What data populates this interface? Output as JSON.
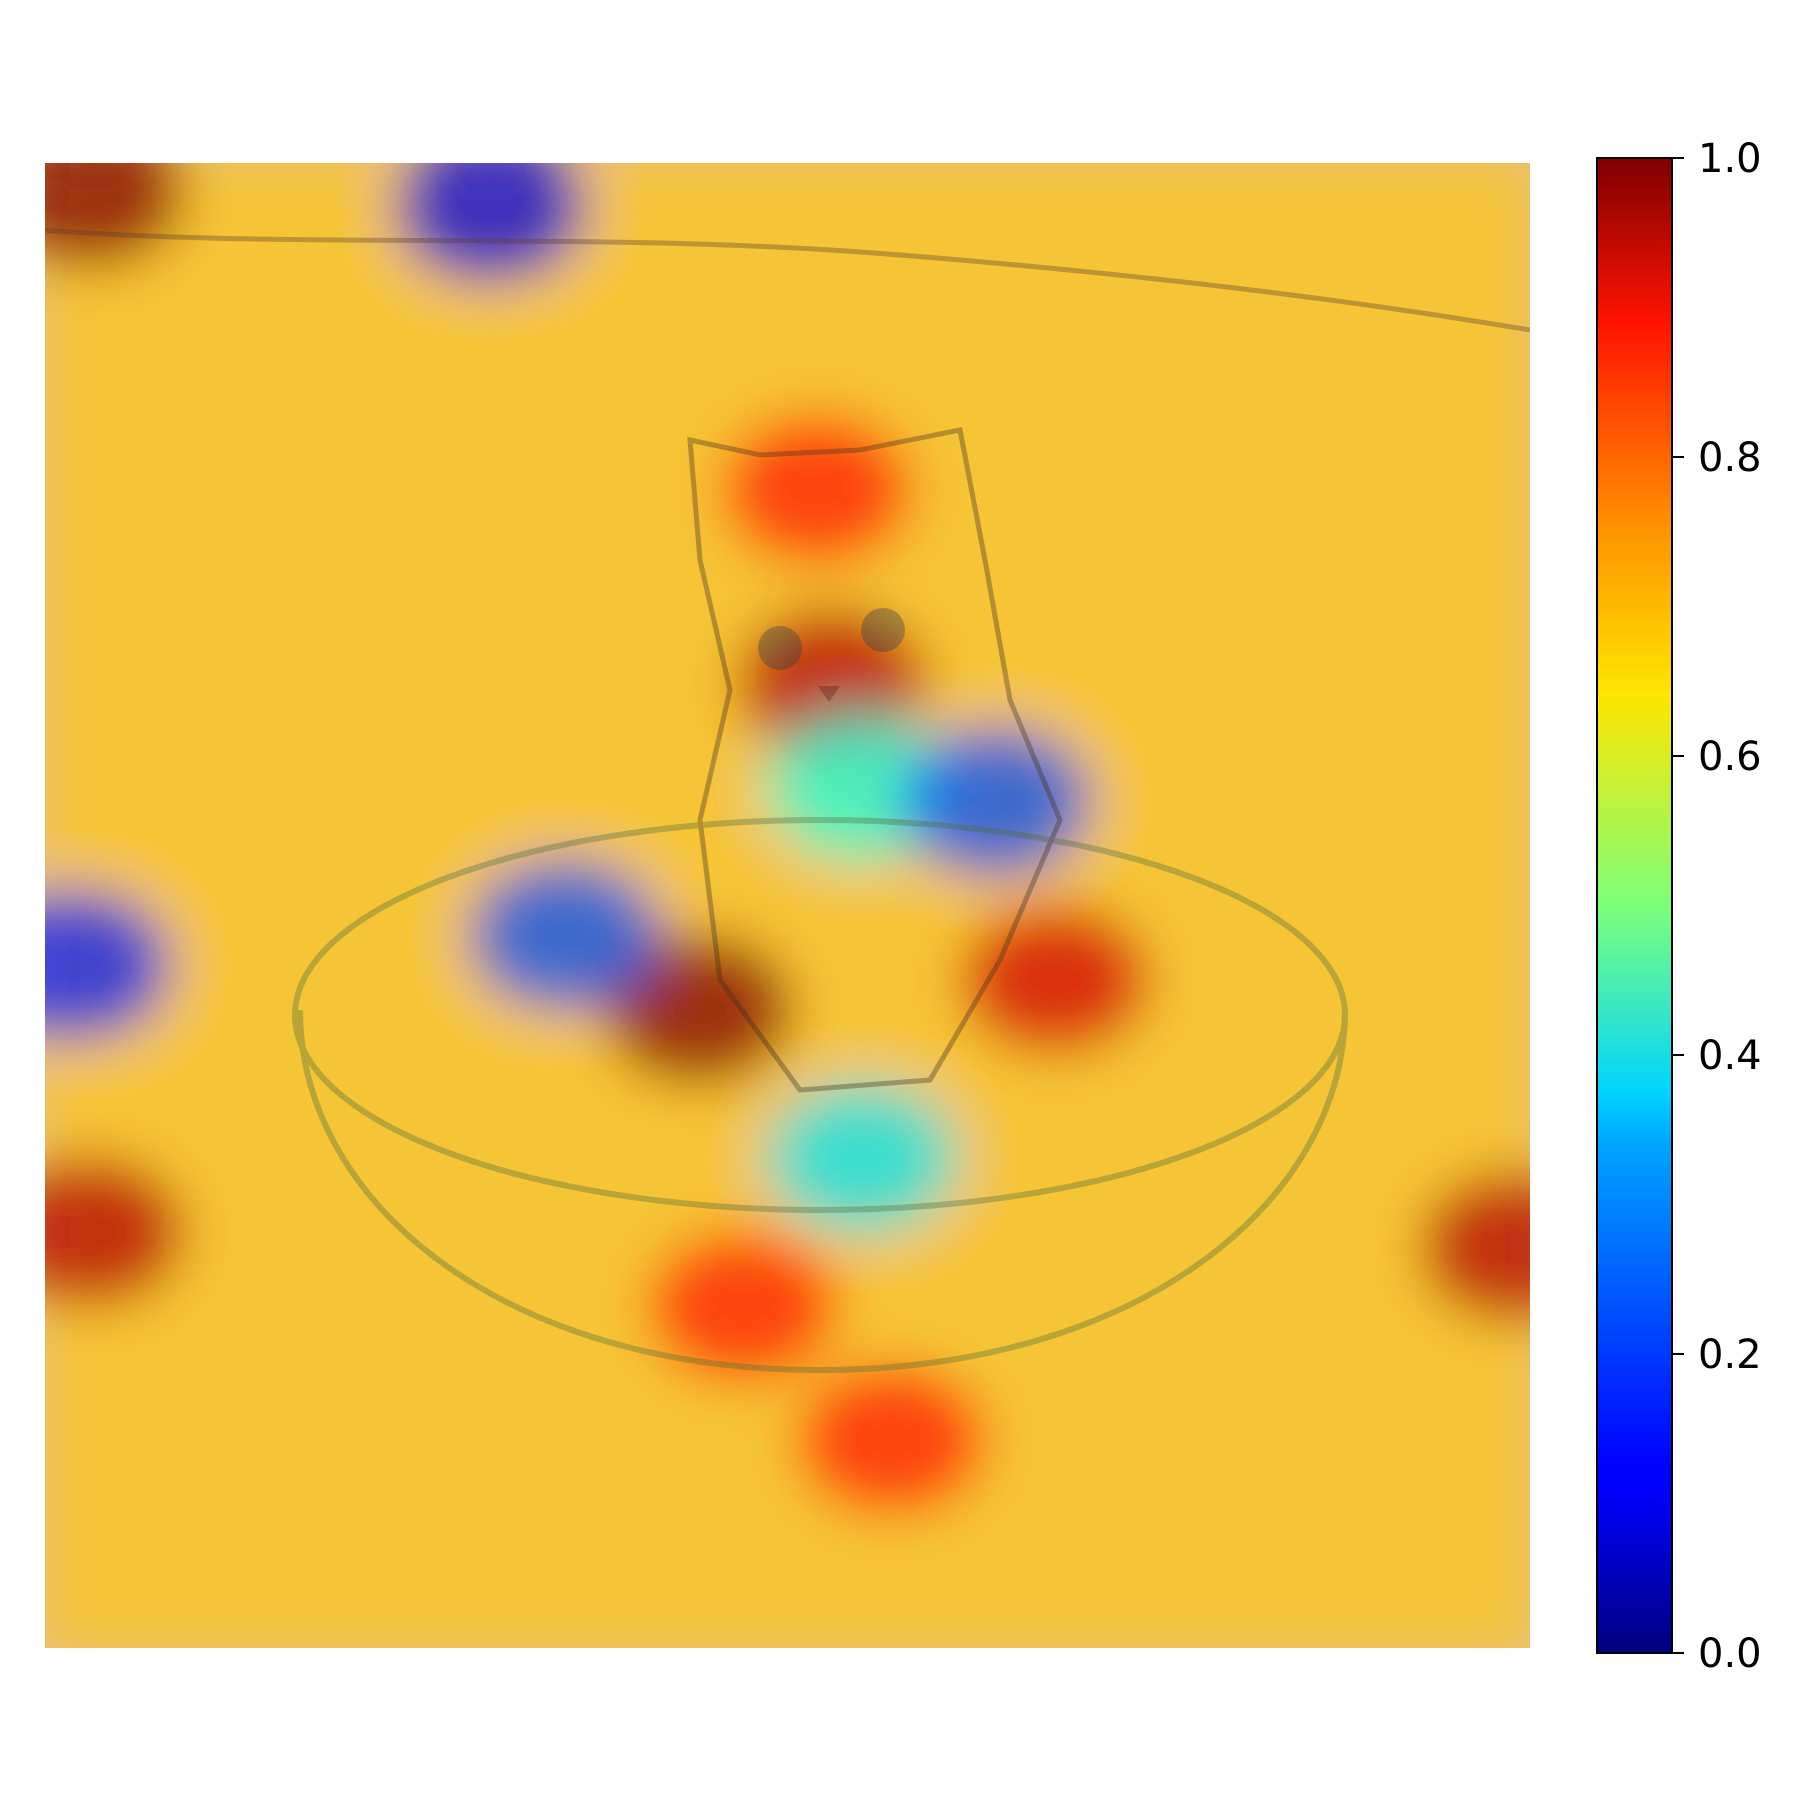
{
  "chart_data": {
    "type": "heatmap",
    "title": "",
    "xlabel": "",
    "ylabel": "",
    "colormap": "jet",
    "value_range": [
      0.0,
      1.0
    ],
    "overlay_alpha": 0.55,
    "background_image": "kitten sitting in a round pet bed on a carpet",
    "grid": false,
    "axes_visible": false,
    "colorbar": {
      "position": "right",
      "ticks": [
        0.0,
        0.2,
        0.4,
        0.6,
        0.8,
        1.0
      ],
      "tick_labels": [
        "0.0",
        "0.2",
        "0.4",
        "0.6",
        "0.8",
        "1.0"
      ]
    },
    "hotspots": [
      {
        "region": "kitten-face",
        "x": 0.53,
        "y": 0.35,
        "value": 0.95
      },
      {
        "region": "kitten-forehead",
        "x": 0.52,
        "y": 0.22,
        "value": 0.85
      },
      {
        "region": "left-paw-shadow",
        "x": 0.44,
        "y": 0.57,
        "value": 1.0
      },
      {
        "region": "right-paw",
        "x": 0.68,
        "y": 0.55,
        "value": 0.92
      },
      {
        "region": "bed-left-rim",
        "x": 0.35,
        "y": 0.52,
        "value": 0.2
      },
      {
        "region": "bed-bottom-rim",
        "x": 0.47,
        "y": 0.77,
        "value": 0.85
      },
      {
        "region": "top-left-corner",
        "x": 0.03,
        "y": 0.02,
        "value": 1.0
      },
      {
        "region": "top-dark-band",
        "x": 0.3,
        "y": 0.03,
        "value": 0.1
      },
      {
        "region": "chest",
        "x": 0.55,
        "y": 0.42,
        "value": 0.4
      },
      {
        "region": "right-shoulder",
        "x": 0.64,
        "y": 0.43,
        "value": 0.2
      },
      {
        "region": "bed-interior",
        "x": 0.55,
        "y": 0.67,
        "value": 0.35
      },
      {
        "region": "left-edge",
        "x": 0.02,
        "y": 0.54,
        "value": 0.15
      },
      {
        "region": "right-lower-edge",
        "x": 0.99,
        "y": 0.73,
        "value": 0.95
      },
      {
        "region": "left-lower-edge",
        "x": 0.03,
        "y": 0.72,
        "value": 0.95
      },
      {
        "region": "bottom-band",
        "x": 0.57,
        "y": 0.86,
        "value": 0.85
      }
    ]
  }
}
